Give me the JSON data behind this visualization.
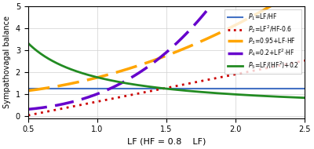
{
  "HF_factor": 0.8,
  "LF_range": [
    0.5,
    2.5
  ],
  "xlabel": "LF (HF = 0.8    LF)",
  "ylabel": "Sympathovagal balance",
  "ylim": [
    -0.1,
    5.0
  ],
  "xlim": [
    0.5,
    2.5
  ],
  "yticks": [
    0,
    1,
    2,
    3,
    4,
    5
  ],
  "xticks": [
    0.5,
    1.0,
    1.5,
    2.0,
    2.5
  ],
  "legend_labels": [
    "$P_1$=LF/HF",
    "$P_2$=LF$^2$/HF-0.6",
    "$P_3$=0.95+LF$\\cdot$HF",
    "$P_4$=0.2+LF$^2$$\\cdot$HF",
    "$P_5$=LF/(HF$^2$)+0.2"
  ],
  "line_colors": [
    "#4472C4",
    "#CC0000",
    "#FFA500",
    "#6600CC",
    "#228B22"
  ],
  "line_widths": [
    1.5,
    2.0,
    2.5,
    2.5,
    2.0
  ],
  "background_color": "#FFFFFF",
  "grid_color": "#D0D0D0"
}
